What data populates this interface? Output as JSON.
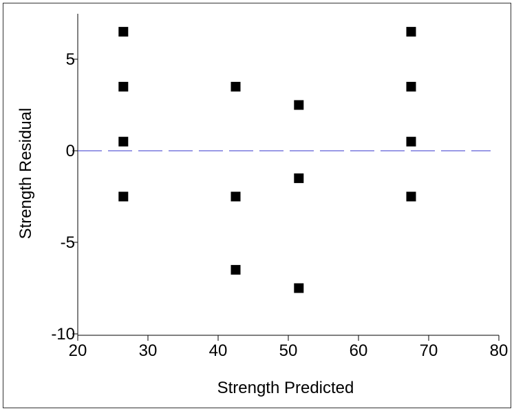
{
  "chart_data": {
    "type": "scatter",
    "title": "",
    "xlabel": "Strength Predicted",
    "ylabel": "Strength Residual",
    "xlim": [
      20,
      80
    ],
    "ylim": [
      -10,
      7.5
    ],
    "x_ticks": [
      20,
      30,
      40,
      50,
      60,
      70,
      80
    ],
    "y_ticks": [
      5,
      0,
      -5,
      -10
    ],
    "x_tick_labels": [
      "20",
      "30",
      "40",
      "50",
      "60",
      "70",
      "80"
    ],
    "y_tick_labels": [
      "5",
      "0",
      "-5",
      "-10"
    ],
    "reference_line": {
      "y": 0,
      "style": "dashed",
      "color": "#3333cc"
    },
    "marker_color": "#000000",
    "grid": false,
    "points": [
      {
        "x": 26.5,
        "y": 6.5
      },
      {
        "x": 26.5,
        "y": 3.5
      },
      {
        "x": 26.5,
        "y": 0.5
      },
      {
        "x": 26.5,
        "y": -2.5
      },
      {
        "x": 42.5,
        "y": 3.5
      },
      {
        "x": 42.5,
        "y": -2.5
      },
      {
        "x": 42.5,
        "y": -6.5
      },
      {
        "x": 51.5,
        "y": 2.5
      },
      {
        "x": 51.5,
        "y": -1.5
      },
      {
        "x": 51.5,
        "y": -7.5
      },
      {
        "x": 67.5,
        "y": 6.5
      },
      {
        "x": 67.5,
        "y": 3.5
      },
      {
        "x": 67.5,
        "y": 0.5
      },
      {
        "x": 67.5,
        "y": -2.5
      }
    ]
  }
}
